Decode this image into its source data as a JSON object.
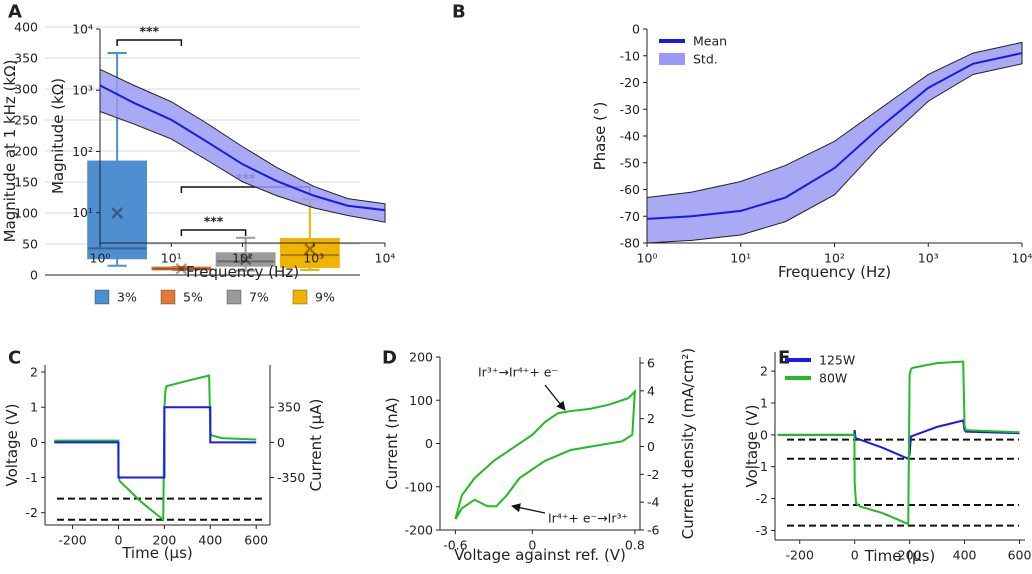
{
  "chart_data": [
    {
      "type": "box",
      "panel": "A",
      "ylabel": "Magnitude at 1 kHz (kΩ)",
      "ylim": [
        0,
        400
      ],
      "yticks": [
        0,
        50,
        100,
        150,
        200,
        250,
        300,
        350,
        400
      ],
      "grid": true,
      "legend": "bottom",
      "series": [
        {
          "name": "3%",
          "color": "#4f8fd0",
          "whisker_low": 15,
          "q1": 27,
          "median": 43,
          "q3": 183,
          "whisker_high": 358,
          "mean": 100
        },
        {
          "name": "5%",
          "color": "#e07b39",
          "whisker_low": 8,
          "q1": 9,
          "median": 10,
          "q3": 12,
          "whisker_high": 13,
          "mean": 10
        },
        {
          "name": "7%",
          "color": "#9a9a9a",
          "whisker_low": 7,
          "q1": 15,
          "median": 22,
          "q3": 35,
          "whisker_high": 60,
          "mean": 25
        },
        {
          "name": "9%",
          "color": "#f0b400",
          "whisker_low": 8,
          "q1": 13,
          "median": 32,
          "q3": 58,
          "whisker_high": 122,
          "mean": 42
        }
      ],
      "annotations": [
        {
          "text": "***",
          "between": [
            "3%",
            "5%"
          ]
        },
        {
          "text": "***",
          "between": [
            "5%",
            "9%"
          ]
        },
        {
          "text": "***",
          "between": [
            "5%",
            "7%"
          ]
        }
      ]
    },
    {
      "type": "line",
      "panel": "B",
      "xlabel": "Frequency (Hz)",
      "ylabel": "Magnitude (kΩ)",
      "xlog": true,
      "ylog": true,
      "xlim": [
        1,
        10000
      ],
      "ylim": [
        3.2,
        10000
      ],
      "xticks": [
        {
          "value": 1,
          "label": "10⁰"
        },
        {
          "value": 10,
          "label": "10¹"
        },
        {
          "value": 100,
          "label": "10²"
        },
        {
          "value": 1000,
          "label": "10³"
        },
        {
          "value": 10000,
          "label": "10⁴"
        }
      ],
      "yticks": [
        {
          "value": 10,
          "label": "10¹"
        },
        {
          "value": 100,
          "label": "10²"
        },
        {
          "value": 1000,
          "label": "10³"
        },
        {
          "value": 10000,
          "label": "10⁴"
        }
      ],
      "x": [
        1,
        3,
        10,
        30,
        100,
        300,
        1000,
        3000,
        10000
      ],
      "series": [
        {
          "color": "#1a1ae6",
          "values": [
            1200,
            620,
            330,
            150,
            62,
            33,
            19,
            13,
            11
          ]
        },
        {
          "color": "#9a9af2",
          "lower": [
            450,
            280,
            160,
            75,
            32,
            19,
            12,
            9,
            7
          ],
          "upper": [
            2200,
            1200,
            650,
            300,
            120,
            55,
            27,
            17,
            14
          ]
        }
      ]
    },
    {
      "type": "line",
      "xlabel": "Frequency (Hz)",
      "ylabel": "Phase (°)",
      "xlog": true,
      "legend": "upper left",
      "xlim": [
        1,
        10000
      ],
      "ylim": [
        -80,
        0
      ],
      "xticks": [
        {
          "value": 1,
          "label": "10⁰"
        },
        {
          "value": 10,
          "label": "10¹"
        },
        {
          "value": 100,
          "label": "10²"
        },
        {
          "value": 1000,
          "label": "10³"
        },
        {
          "value": 10000,
          "label": "10⁴"
        }
      ],
      "yticks": [
        -80,
        -70,
        -60,
        -50,
        -40,
        -30,
        -20,
        -10,
        0
      ],
      "x": [
        1,
        3,
        10,
        30,
        100,
        300,
        1000,
        3000,
        10000
      ],
      "series": [
        {
          "name": "Mean",
          "color": "#1a1ae6",
          "values": [
            -71,
            -70,
            -68,
            -63,
            -52,
            -37,
            -22,
            -13,
            -9
          ]
        },
        {
          "name": "Std.",
          "color": "#9a9af2",
          "lower": [
            -80,
            -79,
            -77,
            -72,
            -62,
            -44,
            -27,
            -17,
            -13
          ],
          "upper": [
            -63,
            -61,
            -57,
            -51,
            -42,
            -30,
            -17,
            -9,
            -5
          ]
        }
      ]
    },
    {
      "type": "line",
      "panel": "C",
      "xlabel": "Time (µs)",
      "ylabel": "Voltage (V)",
      "y2label": "Current (µA)",
      "color_axis_labels": true,
      "xlim": [
        -320,
        660
      ],
      "xticks": [
        -200,
        0,
        200,
        400,
        600
      ],
      "ylim": [
        -2.35,
        2.2
      ],
      "yticks": [
        -2,
        -1,
        0,
        1,
        2
      ],
      "y2lim": [
        -822.5,
        770
      ],
      "y2ticks": [
        -350,
        0,
        350
      ],
      "hlines": [
        -1.6,
        -2.2
      ],
      "series": [
        {
          "color": "#22bb22",
          "x": [
            -280,
            -1,
            0,
            5,
            100,
            195,
            200,
            205,
            210,
            300,
            395,
            400,
            405,
            450,
            600
          ],
          "values": [
            0.05,
            0.05,
            -0.9,
            -1.1,
            -1.7,
            -2.2,
            1.0,
            1.5,
            1.6,
            1.75,
            1.9,
            0.3,
            0.2,
            0.12,
            0.08
          ]
        },
        {
          "color": "#1a1aee",
          "axis": "y2",
          "x": [
            -280,
            0,
            0,
            200,
            200,
            400,
            400,
            600
          ],
          "values": [
            0,
            0,
            -350,
            -350,
            350,
            350,
            0,
            0
          ]
        }
      ]
    },
    {
      "type": "line",
      "panel": "D",
      "xlabel": "Voltage against ref. (V)",
      "ylabel": "Current (nA)",
      "y2label": "Current density (mA/cm²)",
      "xlim": [
        -0.72,
        0.84
      ],
      "xticks": [
        -0.6,
        0,
        0.8
      ],
      "ylim": [
        -200,
        200
      ],
      "yticks": [
        -200,
        -100,
        0,
        100,
        200
      ],
      "y2lim": [
        -6,
        6.43
      ],
      "y2ticks": [
        -6,
        -4,
        -2,
        0,
        2,
        4,
        6
      ],
      "annotations": [
        {
          "text": "Ir³⁺→Ir⁴⁺+ e⁻"
        },
        {
          "text": "Ir⁴⁺+ e⁻→Ir³⁺"
        }
      ],
      "series": [
        {
          "color": "#22bb22",
          "x": [
            -0.6,
            -0.55,
            -0.45,
            -0.3,
            -0.15,
            0,
            0.1,
            0.2,
            0.3,
            0.45,
            0.6,
            0.75,
            0.8,
            0.78,
            0.7,
            0.5,
            0.3,
            0.1,
            -0.1,
            -0.2,
            -0.28,
            -0.35,
            -0.45,
            -0.55,
            -0.6
          ],
          "values": [
            -175,
            -120,
            -80,
            -40,
            -10,
            20,
            50,
            70,
            75,
            80,
            90,
            105,
            120,
            20,
            5,
            -5,
            -15,
            -40,
            -80,
            -120,
            -145,
            -145,
            -130,
            -150,
            -175
          ]
        }
      ]
    },
    {
      "type": "line",
      "panel": "E",
      "xlabel": "Time (µs)",
      "ylabel": "Voltage (V)",
      "legend": "upper left",
      "xlim": [
        -290,
        620
      ],
      "xticks": [
        -200,
        0,
        200,
        400,
        600
      ],
      "ylim": [
        -3.3,
        2.6
      ],
      "yticks": [
        -3,
        -2,
        -1,
        0,
        1,
        2
      ],
      "hlines": [
        -0.15,
        -0.75,
        -2.2,
        -2.85
      ],
      "series": [
        {
          "name": "125W",
          "color": "#1a1aee",
          "x": [
            -280,
            -1,
            0,
            3,
            100,
            195,
            200,
            205,
            300,
            395,
            400,
            405,
            600
          ],
          "values": [
            0,
            0,
            0.15,
            -0.1,
            -0.4,
            -0.75,
            -0.6,
            -0.05,
            0.25,
            0.45,
            0.15,
            0.1,
            0.05
          ]
        },
        {
          "name": "80W",
          "color": "#22bb22",
          "x": [
            -280,
            -1,
            0,
            5,
            20,
            100,
            195,
            200,
            205,
            210,
            300,
            395,
            400,
            405,
            600
          ],
          "values": [
            0,
            0,
            -1.5,
            -2.15,
            -2.25,
            -2.45,
            -2.8,
            1.9,
            2.05,
            2.1,
            2.25,
            2.3,
            0.3,
            0.15,
            0.08
          ]
        }
      ]
    }
  ]
}
